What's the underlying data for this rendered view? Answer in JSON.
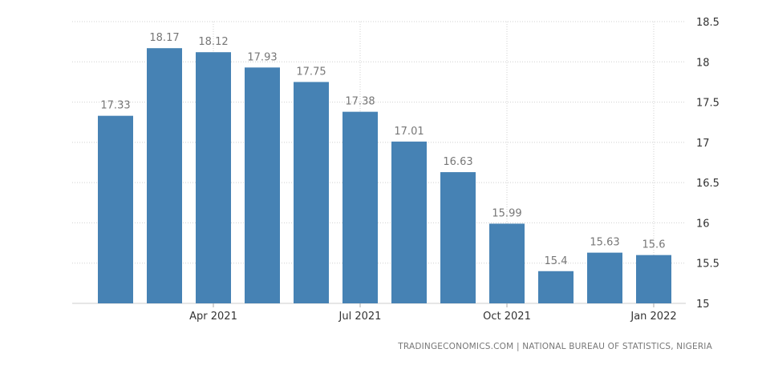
{
  "chart_data": {
    "type": "bar",
    "categories": [
      "Feb 2021",
      "Mar 2021",
      "Apr 2021",
      "May 2021",
      "Jun 2021",
      "Jul 2021",
      "Aug 2021",
      "Sep 2021",
      "Oct 2021",
      "Nov 2021",
      "Dec 2021",
      "Jan 2022"
    ],
    "values": [
      17.33,
      18.17,
      18.12,
      17.93,
      17.75,
      17.38,
      17.01,
      16.63,
      15.99,
      15.4,
      15.63,
      15.6
    ],
    "value_labels": [
      "17.33",
      "18.17",
      "18.12",
      "17.93",
      "17.75",
      "17.38",
      "17.01",
      "16.63",
      "15.99",
      "15.4",
      "15.63",
      "15.6"
    ],
    "x_tick_labels": [
      "Apr 2021",
      "Jul 2021",
      "Oct 2021",
      "Jan 2022"
    ],
    "y_tick_labels": [
      "15",
      "15.5",
      "16",
      "16.5",
      "17",
      "17.5",
      "18",
      "18.5"
    ],
    "y_ticks": [
      15,
      15.5,
      16,
      16.5,
      17,
      17.5,
      18,
      18.5
    ],
    "ylim": [
      15,
      18.5
    ],
    "y_axis_position": "right",
    "grid": true,
    "bar_color": "#4682b4",
    "title": "",
    "xlabel": "",
    "ylabel": ""
  },
  "footer": {
    "source": "TRADINGECONOMICS.COM  |  NATIONAL BUREAU OF STATISTICS, NIGERIA"
  }
}
